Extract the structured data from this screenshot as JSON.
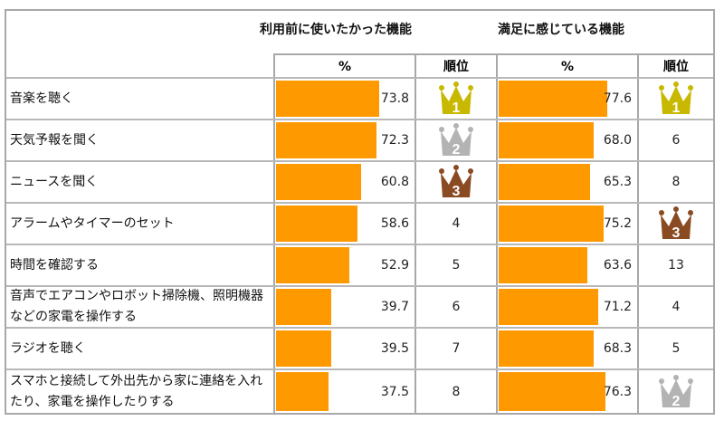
{
  "chart_data": {
    "type": "table",
    "column_groups": [
      "利用前に使いたかった機能",
      "満足に感じている機能"
    ],
    "sub_headers": [
      "%",
      "順位",
      "%",
      "順位"
    ],
    "bar_color": "#ff9900",
    "crown_colors": {
      "1": "#c9b800",
      "2": "#b3b3b3",
      "3": "#8a4a22"
    },
    "xlim": [
      0,
      100
    ],
    "rows": [
      {
        "label": "音楽を聴く",
        "before_pct": 73.8,
        "before_rank": 1,
        "satisfied_pct": 77.6,
        "satisfied_rank": 1
      },
      {
        "label": "天気予報を聞く",
        "before_pct": 72.3,
        "before_rank": 2,
        "satisfied_pct": 68.0,
        "satisfied_rank": 6
      },
      {
        "label": "ニュースを聞く",
        "before_pct": 60.8,
        "before_rank": 3,
        "satisfied_pct": 65.3,
        "satisfied_rank": 8
      },
      {
        "label": "アラームやタイマーのセット",
        "before_pct": 58.6,
        "before_rank": 4,
        "satisfied_pct": 75.2,
        "satisfied_rank": 3
      },
      {
        "label": "時間を確認する",
        "before_pct": 52.9,
        "before_rank": 5,
        "satisfied_pct": 63.6,
        "satisfied_rank": 13
      },
      {
        "label": "音声でエアコンやロボット掃除機、照明機器などの家電を操作する",
        "before_pct": 39.7,
        "before_rank": 6,
        "satisfied_pct": 71.2,
        "satisfied_rank": 4
      },
      {
        "label": "ラジオを聴く",
        "before_pct": 39.5,
        "before_rank": 7,
        "satisfied_pct": 68.3,
        "satisfied_rank": 5
      },
      {
        "label": "スマホと接続して外出先から家に連絡を入れたり、家電を操作したりする",
        "before_pct": 37.5,
        "before_rank": 8,
        "satisfied_pct": 76.3,
        "satisfied_rank": 2
      }
    ]
  }
}
